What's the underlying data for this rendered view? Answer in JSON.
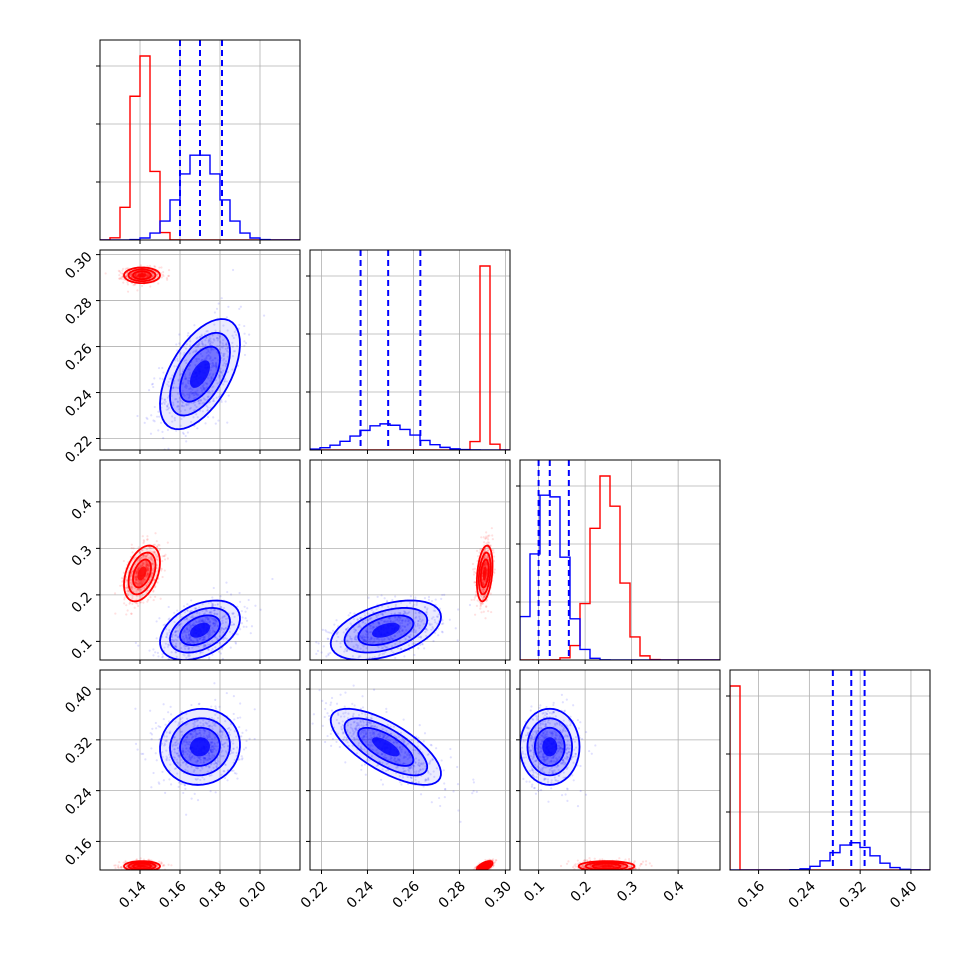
{
  "colors": {
    "red": "#ff0000",
    "blue": "#0000ff",
    "grid": "#b0b0b0"
  },
  "chart_data": {
    "type": "corner",
    "title": "",
    "grid": true,
    "parameters": [
      {
        "name": "",
        "range": [
          0.12,
          0.22
        ],
        "ticks": [
          0.14,
          0.16,
          0.18,
          0.2
        ],
        "tick_labels": [
          "0.14",
          "0.16",
          "0.18",
          "0.20"
        ]
      },
      {
        "name": "",
        "range": [
          0.215,
          0.302
        ],
        "ticks": [
          0.22,
          0.24,
          0.26,
          0.28,
          0.3
        ],
        "tick_labels": [
          "0.22",
          "0.24",
          "0.26",
          "0.28",
          "0.30"
        ]
      },
      {
        "name": "",
        "range": [
          0.06,
          0.49
        ],
        "ticks": [
          0.1,
          0.2,
          0.3,
          0.4
        ],
        "tick_labels": [
          "0.1",
          "0.2",
          "0.3",
          "0.4"
        ]
      },
      {
        "name": "",
        "range": [
          0.115,
          0.43
        ],
        "ticks": [
          0.16,
          0.24,
          0.32,
          0.4
        ],
        "tick_labels": [
          "0.16",
          "0.24",
          "0.32",
          "0.40"
        ]
      }
    ],
    "series": [
      {
        "name": "",
        "color": "#ff0000",
        "means": [
          0.141,
          0.291,
          0.246,
          0.121
        ],
        "sigmas": [
          0.0045,
          0.0017,
          0.03,
          0.004
        ],
        "correlations": [
          [
            0,
            1,
            0.0
          ],
          [
            0,
            2,
            0.4
          ],
          [
            0,
            3,
            0.0
          ],
          [
            1,
            2,
            0.3
          ],
          [
            1,
            3,
            0.6
          ],
          [
            2,
            3,
            0.0
          ]
        ],
        "quantile_lines": false
      },
      {
        "name": "",
        "color": "#0000ff",
        "means": [
          0.17,
          0.248,
          0.124,
          0.309
        ],
        "sigmas": [
          0.01,
          0.012,
          0.032,
          0.03
        ],
        "correlations": [
          [
            0,
            1,
            0.55
          ],
          [
            0,
            2,
            0.4
          ],
          [
            0,
            3,
            0.05
          ],
          [
            1,
            2,
            0.45
          ],
          [
            1,
            3,
            -0.7
          ],
          [
            2,
            3,
            0.0
          ]
        ],
        "quantiles": [
          [
            0.16,
            0.17,
            0.181
          ],
          [
            0.237,
            0.249,
            0.263
          ],
          [
            0.1,
            0.124,
            0.165
          ],
          [
            0.277,
            0.306,
            0.327
          ]
        ],
        "quantile_lines": true
      }
    ]
  }
}
